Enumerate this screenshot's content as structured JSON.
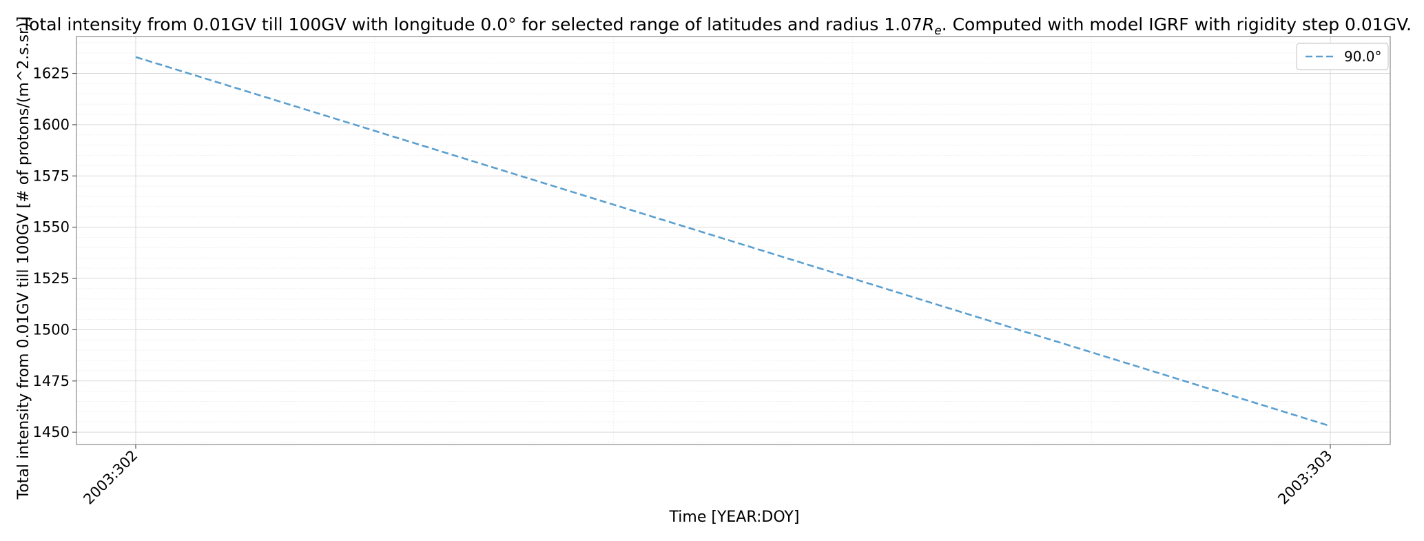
{
  "chart_data": {
    "type": "line",
    "title_prefix": "Total intensity from 0.01GV till 100GV with longitude 0.0° for selected range of latitudes and radius 1.07",
    "title_r": "R",
    "title_sub": "e",
    "title_suffix": ". Computed with model IGRF with rigidity step 0.01GV.",
    "xlabel": "Time [YEAR:DOY]",
    "ylabel": "Total intensity from 0.01GV till 100GV [# of protons/(m^2.s.sr)]",
    "x_ticks": [
      "2003:302",
      "2003:303"
    ],
    "x": [
      "2003:302",
      "2003:303"
    ],
    "y_ticks": [
      1450,
      1475,
      1500,
      1525,
      1550,
      1575,
      1600,
      1625
    ],
    "ylim": [
      1444,
      1643
    ],
    "grid": true,
    "legend_position": "top-right",
    "series": [
      {
        "name": "90.0°",
        "values": [
          1633,
          1453
        ],
        "color": "#5a9fd0",
        "style": "dashed"
      }
    ]
  }
}
